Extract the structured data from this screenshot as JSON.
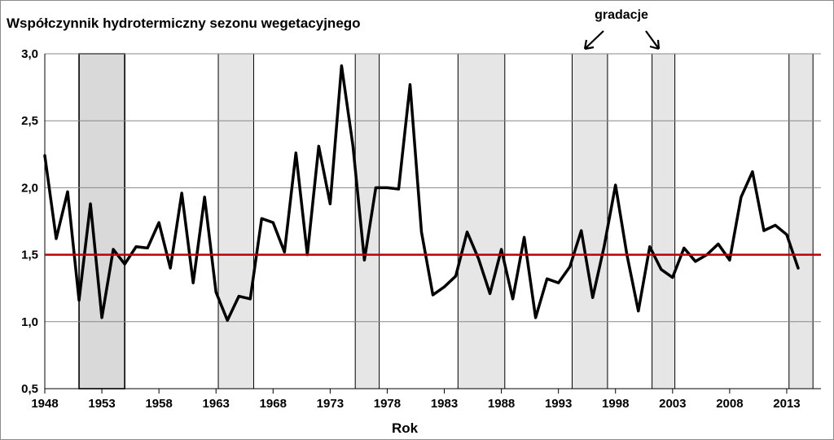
{
  "chart_data": {
    "type": "line",
    "title": "Współczynnik  hydrotermiczny  sezonu  wegetacyjnego",
    "xlabel": "Rok",
    "ylabel": "",
    "xlim": [
      1948,
      2016
    ],
    "ylim": [
      0.5,
      3.0
    ],
    "y_ticks": [
      {
        "value": 0.5,
        "label": "0,5"
      },
      {
        "value": 1.0,
        "label": "1,0"
      },
      {
        "value": 1.5,
        "label": "1,5"
      },
      {
        "value": 2.0,
        "label": "2,0"
      },
      {
        "value": 2.5,
        "label": "2,5"
      },
      {
        "value": 3.0,
        "label": "3,0"
      }
    ],
    "x_ticks": [
      1948,
      1953,
      1958,
      1963,
      1968,
      1973,
      1978,
      1983,
      1988,
      1993,
      1998,
      2003,
      2008,
      2013
    ],
    "grid": true,
    "reference_line": {
      "value": 1.5,
      "color": "#c00000"
    },
    "annotation": {
      "label": "gradacje"
    },
    "gradation_periods": [
      {
        "start": 1951,
        "end": 1955,
        "shade": "#d9d9d9"
      },
      {
        "start": 1963.2,
        "end": 1966.3,
        "shade": "#e6e6e6"
      },
      {
        "start": 1975.2,
        "end": 1977.3,
        "shade": "#e6e6e6"
      },
      {
        "start": 1984.2,
        "end": 1988.3,
        "shade": "#e6e6e6"
      },
      {
        "start": 1994.2,
        "end": 1997.3,
        "shade": "#e6e6e6"
      },
      {
        "start": 2001.2,
        "end": 2003.2,
        "shade": "#e6e6e6"
      },
      {
        "start": 2013.2,
        "end": 2015.3,
        "shade": "#e6e6e6"
      }
    ],
    "series": [
      {
        "line_color": "#000000",
        "x": [
          1948,
          1949,
          1950,
          1951,
          1952,
          1953,
          1954,
          1955,
          1956,
          1957,
          1958,
          1959,
          1960,
          1961,
          1962,
          1963,
          1964,
          1965,
          1966,
          1967,
          1968,
          1969,
          1970,
          1971,
          1972,
          1973,
          1974,
          1975,
          1976,
          1977,
          1978,
          1979,
          1980,
          1981,
          1982,
          1983,
          1984,
          1985,
          1986,
          1987,
          1988,
          1989,
          1990,
          1991,
          1992,
          1993,
          1994,
          1995,
          1996,
          1997,
          1998,
          1999,
          2000,
          2001,
          2002,
          2003,
          2004,
          2005,
          2006,
          2007,
          2008,
          2009,
          2010,
          2011,
          2012,
          2013,
          2014
        ],
        "values": [
          2.24,
          1.62,
          1.97,
          1.16,
          1.88,
          1.03,
          1.54,
          1.43,
          1.56,
          1.55,
          1.74,
          1.4,
          1.96,
          1.29,
          1.93,
          1.22,
          1.01,
          1.19,
          1.17,
          1.77,
          1.74,
          1.52,
          2.26,
          1.5,
          2.31,
          1.88,
          2.91,
          2.31,
          1.46,
          2.0,
          2.0,
          1.99,
          2.77,
          1.67,
          1.2,
          1.26,
          1.34,
          1.67,
          1.47,
          1.21,
          1.54,
          1.17,
          1.63,
          1.03,
          1.32,
          1.29,
          1.41,
          1.68,
          1.18,
          1.56,
          2.02,
          1.5,
          1.08,
          1.56,
          1.39,
          1.33,
          1.55,
          1.45,
          1.5,
          1.58,
          1.46,
          1.93,
          2.12,
          1.68,
          1.72,
          1.65,
          1.4
        ]
      }
    ]
  }
}
